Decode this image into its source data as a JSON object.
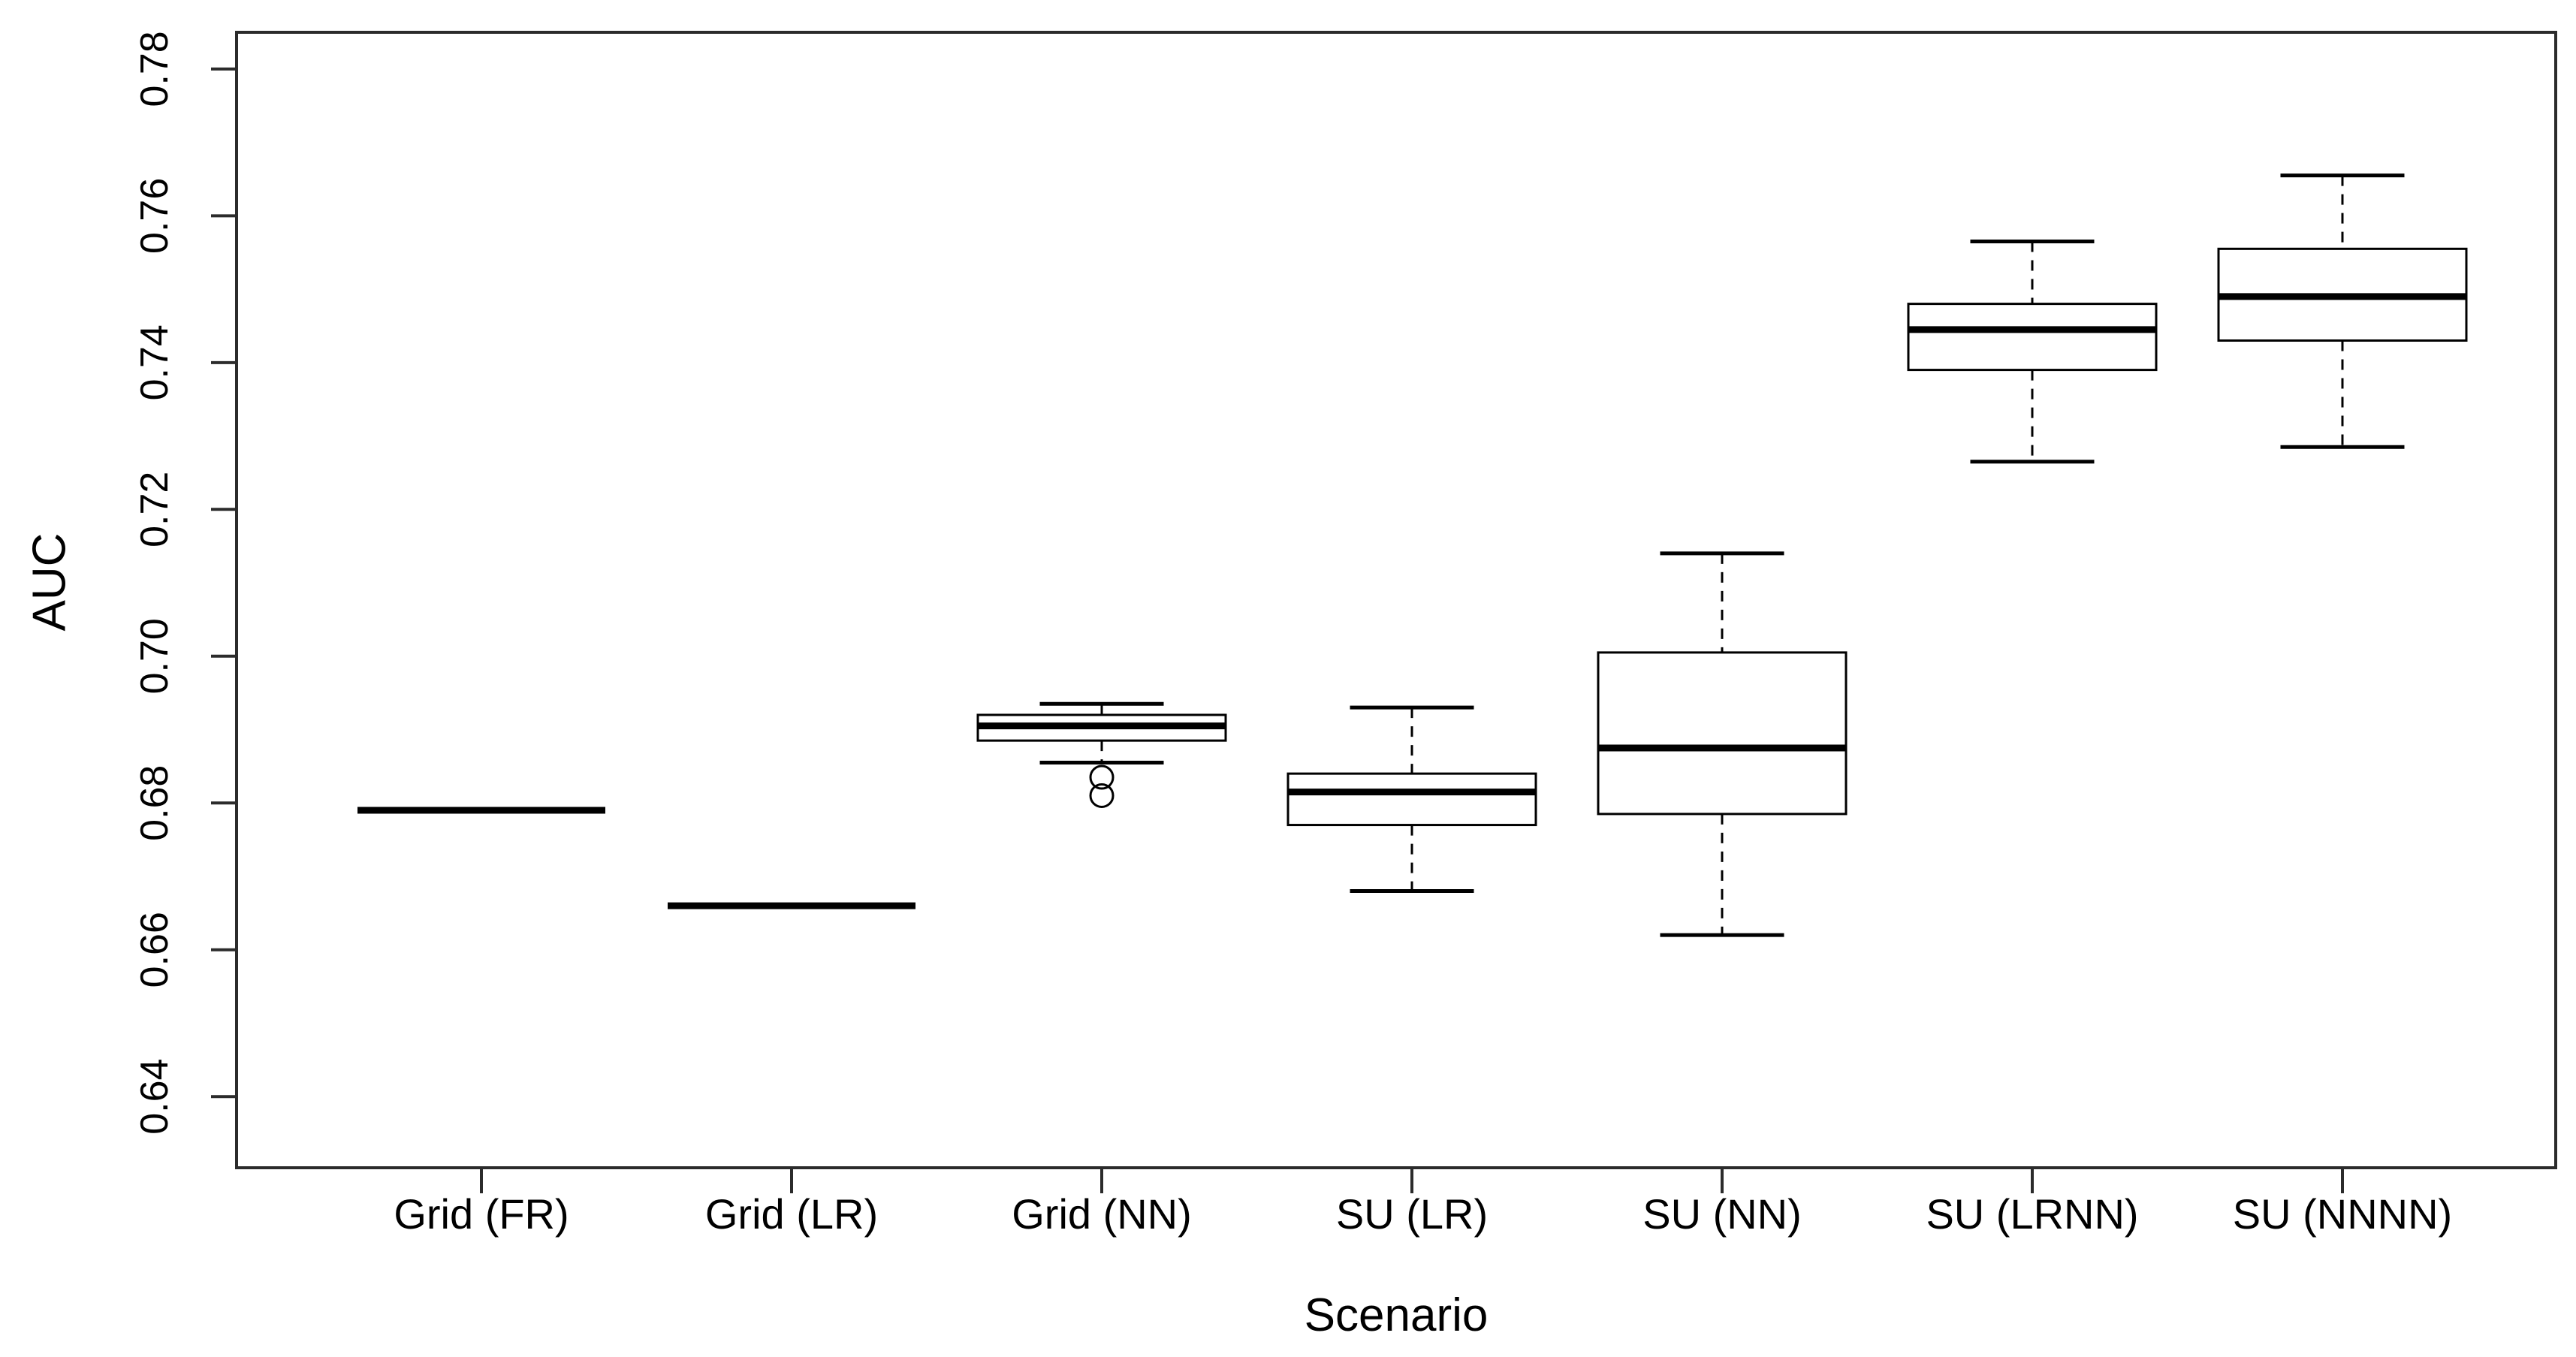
{
  "figure": {
    "background": "#ffffff"
  },
  "chart_data": {
    "type": "boxplot",
    "title": "",
    "xlabel": "Scenario",
    "ylabel": "AUC",
    "categories": [
      "Grid (FR)",
      "Grid (LR)",
      "Grid (NN)",
      "SU (LR)",
      "SU (NN)",
      "SU (LRNN)",
      "SU (NNNN)"
    ],
    "y_ticks": [
      0.64,
      0.66,
      0.68,
      0.7,
      0.72,
      0.74,
      0.76,
      0.78
    ],
    "ylim": [
      0.6303,
      0.785
    ],
    "grid": false,
    "legend": "none",
    "series": [
      {
        "category": "Grid (FR)",
        "low": 0.679,
        "q1": 0.679,
        "median": 0.679,
        "q3": 0.679,
        "high": 0.679,
        "outliers": []
      },
      {
        "category": "Grid (LR)",
        "low": 0.666,
        "q1": 0.666,
        "median": 0.666,
        "q3": 0.666,
        "high": 0.666,
        "outliers": []
      },
      {
        "category": "Grid (NN)",
        "low": 0.6855,
        "q1": 0.6885,
        "median": 0.6905,
        "q3": 0.692,
        "high": 0.6935,
        "outliers": [
          0.6835,
          0.681
        ]
      },
      {
        "category": "SU (LR)",
        "low": 0.668,
        "q1": 0.677,
        "median": 0.6815,
        "q3": 0.684,
        "high": 0.693,
        "outliers": []
      },
      {
        "category": "SU (NN)",
        "low": 0.662,
        "q1": 0.6785,
        "median": 0.6875,
        "q3": 0.7005,
        "high": 0.714,
        "outliers": []
      },
      {
        "category": "SU (LRNN)",
        "low": 0.7265,
        "q1": 0.739,
        "median": 0.7445,
        "q3": 0.748,
        "high": 0.7565,
        "outliers": []
      },
      {
        "category": "SU (NNNN)",
        "low": 0.7285,
        "q1": 0.743,
        "median": 0.749,
        "q3": 0.7555,
        "high": 0.7655,
        "outliers": []
      }
    ],
    "colors": {
      "box_fill": "#ffffff",
      "line": "#000000",
      "axis": "#2b2b2b"
    }
  }
}
